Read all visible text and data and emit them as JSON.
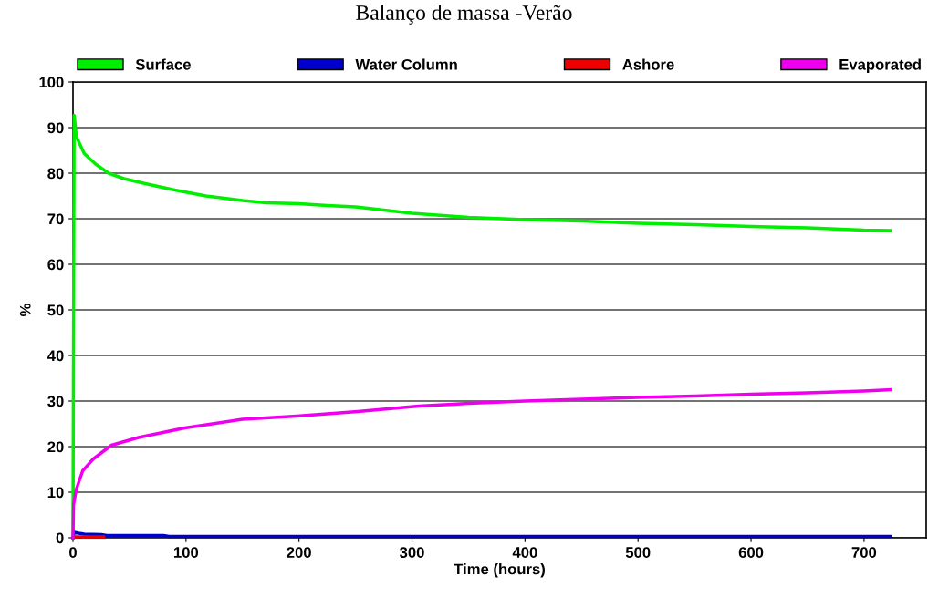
{
  "chart_data": {
    "type": "line",
    "title": "Balanço de massa -Verão",
    "xlabel": "Time (hours)",
    "ylabel": "%",
    "xlim": [
      0,
      755
    ],
    "xticks": [
      0,
      100,
      200,
      300,
      400,
      500,
      600,
      700
    ],
    "ylim": [
      0,
      100
    ],
    "yticks": [
      0,
      10,
      20,
      30,
      40,
      50,
      60,
      70,
      80,
      90,
      100
    ],
    "grid": "y",
    "legend": "top",
    "line_style": "solid",
    "marker": "none",
    "series": [
      {
        "name": "Surface",
        "color": "#00ee00",
        "x": [
          0,
          1,
          3,
          10,
          20,
          31.5,
          45,
          64,
          90,
          117.6,
          150,
          171,
          200,
          225,
          250,
          300,
          350,
          400,
          450,
          500,
          550,
          600,
          650,
          700,
          723
        ],
        "values": [
          0,
          92.7,
          88,
          84.3,
          82,
          80,
          78.8,
          77.7,
          76.3,
          75,
          74,
          73.5,
          73.3,
          72.9,
          72.6,
          71.2,
          70.3,
          69.8,
          69.5,
          69,
          68.7,
          68.3,
          68,
          67.5,
          67.4
        ]
      },
      {
        "name": "Water Column",
        "color": "#0000cc",
        "x": [
          0,
          1,
          5,
          10,
          25,
          30,
          80,
          85,
          723
        ],
        "values": [
          0,
          1.2,
          1,
          0.8,
          0.7,
          0.5,
          0.5,
          0.3,
          0.3
        ]
      },
      {
        "name": "Ashore",
        "color": "#ee0000",
        "x": [
          3,
          15,
          27
        ],
        "values": [
          0.2,
          0.2,
          0.2
        ]
      },
      {
        "name": "Evaporated",
        "color": "#ee00ee",
        "x": [
          0,
          0.5,
          3,
          8.6,
          18,
          34,
          58,
          99,
          150,
          198,
          252,
          306,
          350,
          400,
          450,
          500,
          550,
          600,
          650,
          700,
          723
        ],
        "values": [
          0,
          7.3,
          10.7,
          14.7,
          17.3,
          20.3,
          22,
          24.1,
          26,
          26.7,
          27.7,
          28.9,
          29.5,
          30,
          30.4,
          30.8,
          31.1,
          31.5,
          31.8,
          32.2,
          32.5
        ]
      }
    ]
  }
}
